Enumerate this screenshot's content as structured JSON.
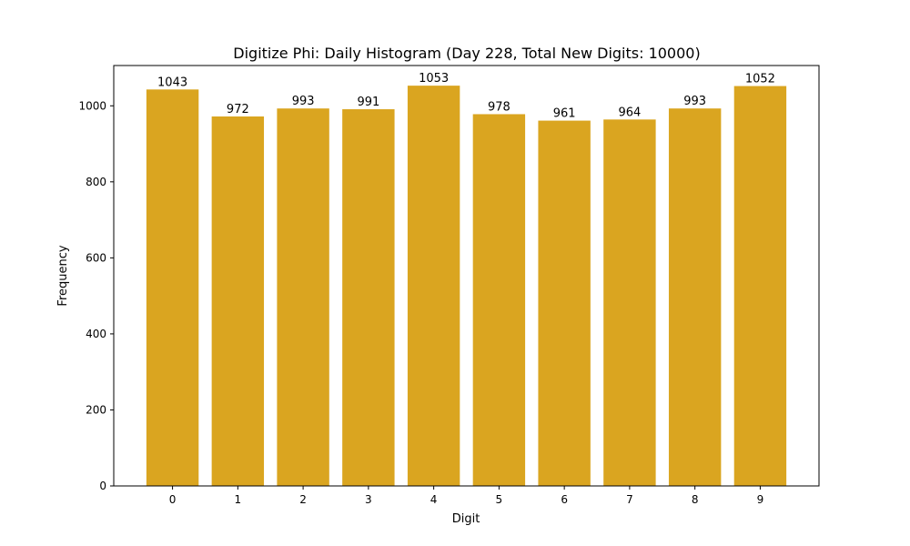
{
  "chart_data": {
    "type": "bar",
    "title": "Digitize Phi: Daily Histogram (Day 228, Total New Digits: 10000)",
    "xlabel": "Digit",
    "ylabel": "Frequency",
    "categories": [
      "0",
      "1",
      "2",
      "3",
      "4",
      "5",
      "6",
      "7",
      "8",
      "9"
    ],
    "values": [
      1043,
      972,
      993,
      991,
      1053,
      978,
      961,
      964,
      993,
      1052
    ],
    "data_labels": [
      "1043",
      "972",
      "993",
      "991",
      "1053",
      "978",
      "961",
      "964",
      "993",
      "1052"
    ],
    "ylim": [
      0,
      1106
    ],
    "xlim": [
      -0.9,
      9.9
    ],
    "yticks": [
      0,
      200,
      400,
      600,
      800,
      1000
    ],
    "grid": false,
    "legend": null,
    "bar_color": "#DAA520"
  }
}
